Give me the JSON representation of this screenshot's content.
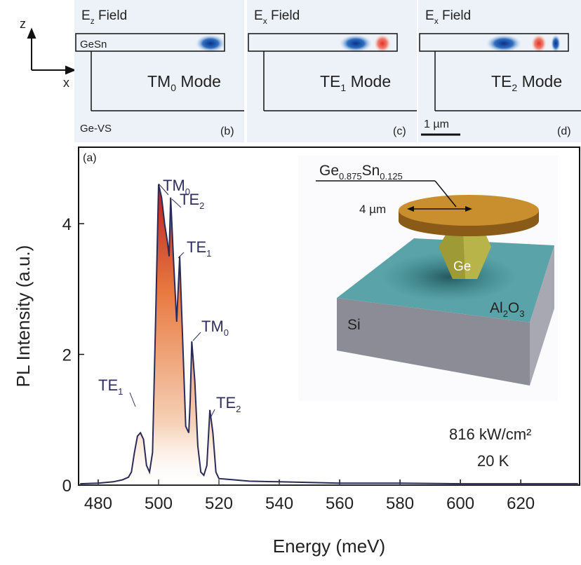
{
  "chart_data": {
    "type": "line",
    "y_label": "PL Intensity (a.u.)",
    "x_label": "Energy (meV)",
    "panel_label": "(a)",
    "x": [
      474,
      480,
      485,
      488,
      490,
      491,
      492,
      493,
      494,
      495,
      496,
      497,
      498,
      499,
      500,
      501,
      502,
      503,
      503.5,
      504,
      505,
      506,
      507,
      508,
      509,
      510,
      510.5,
      511,
      512,
      513,
      514,
      515,
      516,
      517,
      518,
      519,
      520,
      525,
      530,
      540,
      550,
      560,
      580,
      600,
      620,
      639
    ],
    "values": [
      0.02,
      0.03,
      0.05,
      0.08,
      0.12,
      0.2,
      0.5,
      0.75,
      0.8,
      0.7,
      0.3,
      0.2,
      0.5,
      2.5,
      4.6,
      4.4,
      4.0,
      3.7,
      3.5,
      4.4,
      3.4,
      2.5,
      3.5,
      2.2,
      0.9,
      0.8,
      1.3,
      2.2,
      1.6,
      0.6,
      0.2,
      0.15,
      0.3,
      1.15,
      0.8,
      0.2,
      0.1,
      0.08,
      0.06,
      0.05,
      0.04,
      0.03,
      0.03,
      0.02,
      0.02,
      0.02
    ],
    "color": "#2b2b58",
    "xlim": [
      473.5,
      639.5
    ],
    "ylim": [
      0,
      5.17
    ],
    "xticks": [
      480,
      500,
      520,
      540,
      560,
      580,
      600,
      620
    ],
    "yticks": [
      0,
      2,
      4
    ],
    "annotations": [
      {
        "text": "TM",
        "sub": "0"
      },
      {
        "text": "TE",
        "sub": "2"
      },
      {
        "text": "TE",
        "sub": "1"
      },
      {
        "text": "TM",
        "sub": "0"
      },
      {
        "text": "TE",
        "sub": "2"
      },
      {
        "text": "TE",
        "sub": "1"
      }
    ],
    "conditions": [
      "816 kW/cm²",
      "20 K"
    ]
  },
  "panels": [
    {
      "field": {
        "text": "E",
        "sub": "z",
        "rest": " Field"
      },
      "mode": {
        "text": "TM",
        "sub": "0",
        "rest": " Mode"
      },
      "label": "(b)",
      "layer_top": "GeSn",
      "layer_bottom": "Ge-VS"
    },
    {
      "field": {
        "text": "E",
        "sub": "x",
        "rest": " Field"
      },
      "mode": {
        "text": "TE",
        "sub": "1",
        "rest": " Mode"
      },
      "label": "(c)"
    },
    {
      "field": {
        "text": "E",
        "sub": "x",
        "rest": " Field"
      },
      "mode": {
        "text": "TE",
        "sub": "2",
        "rest": " Mode"
      },
      "label": "(d)",
      "scale": "1 µm"
    }
  ],
  "axes_glyph": {
    "z": "z",
    "x": "x"
  },
  "inset": {
    "disk": {
      "a": "Ge",
      "a_sub": "0.875",
      "b": "Sn",
      "b_sub": "0.125"
    },
    "diameter": "4 µm",
    "pillar": "Ge",
    "layer": {
      "a": "Al",
      "a_sub": "2",
      "b": "O",
      "b_sub": "3"
    },
    "substrate": "Si"
  }
}
